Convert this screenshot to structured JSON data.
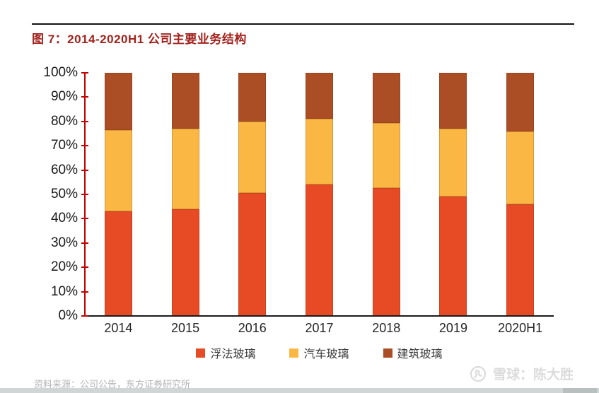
{
  "report": {
    "figure_label": "图 7：2014-2020H1 公司主要业务结构",
    "source_note": "资料来源：公司公告，东方证券研究所",
    "watermark_text": "雪球：陈大胜"
  },
  "chart_data": {
    "type": "bar",
    "stacked": true,
    "normalized_100_percent": true,
    "title": "图 7：2014-2020H1 公司主要业务结构",
    "categories": [
      "2014",
      "2015",
      "2016",
      "2017",
      "2018",
      "2019",
      "2020H1"
    ],
    "series": [
      {
        "key": "float-glass",
        "name": "浮法玻璃",
        "color": "#E74B25",
        "values": [
          43,
          44,
          50.5,
          54,
          52.5,
          49,
          46
        ]
      },
      {
        "key": "auto-glass",
        "name": "汽车玻璃",
        "color": "#FAB744",
        "values": [
          33.5,
          33,
          29.5,
          27,
          27,
          28,
          30
        ]
      },
      {
        "key": "architectural-glass",
        "name": "建筑玻璃",
        "color": "#AB4E26",
        "values": [
          23.5,
          23,
          20,
          19,
          20.5,
          23,
          24
        ]
      }
    ],
    "xlabel": "",
    "ylabel": "",
    "ylim": [
      0,
      100
    ],
    "yticks": [
      "0%",
      "10%",
      "20%",
      "30%",
      "40%",
      "50%",
      "60%",
      "70%",
      "80%",
      "90%",
      "100%"
    ],
    "grid": false,
    "legend_position": "bottom",
    "axis_color": "#C00000",
    "baseline_color": "#1A1A1A"
  }
}
